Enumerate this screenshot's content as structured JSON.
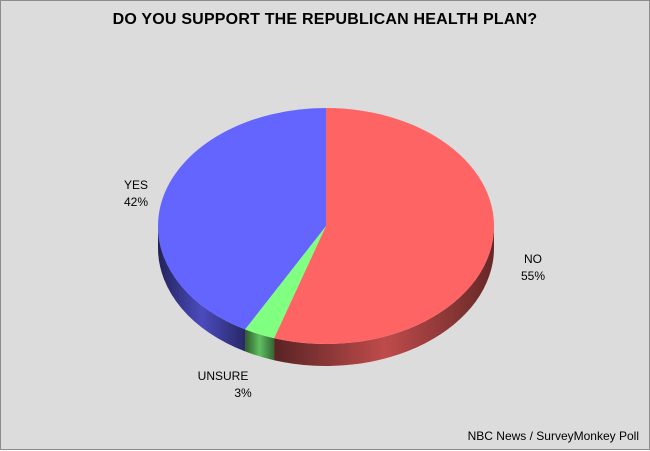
{
  "chart_data": {
    "type": "pie",
    "title": "DO YOU SUPPORT THE REPUBLICAN HEALTH PLAN?",
    "source": "NBC News / SurveyMonkey Poll",
    "slices": [
      {
        "label": "NO",
        "value": 55,
        "value_label": "55%",
        "color": "#ff6464"
      },
      {
        "label": "UNSURE",
        "value": 3,
        "value_label": "3%",
        "color": "#80ff80"
      },
      {
        "label": "YES",
        "value": 42,
        "value_label": "42%",
        "color": "#6464ff"
      }
    ]
  }
}
